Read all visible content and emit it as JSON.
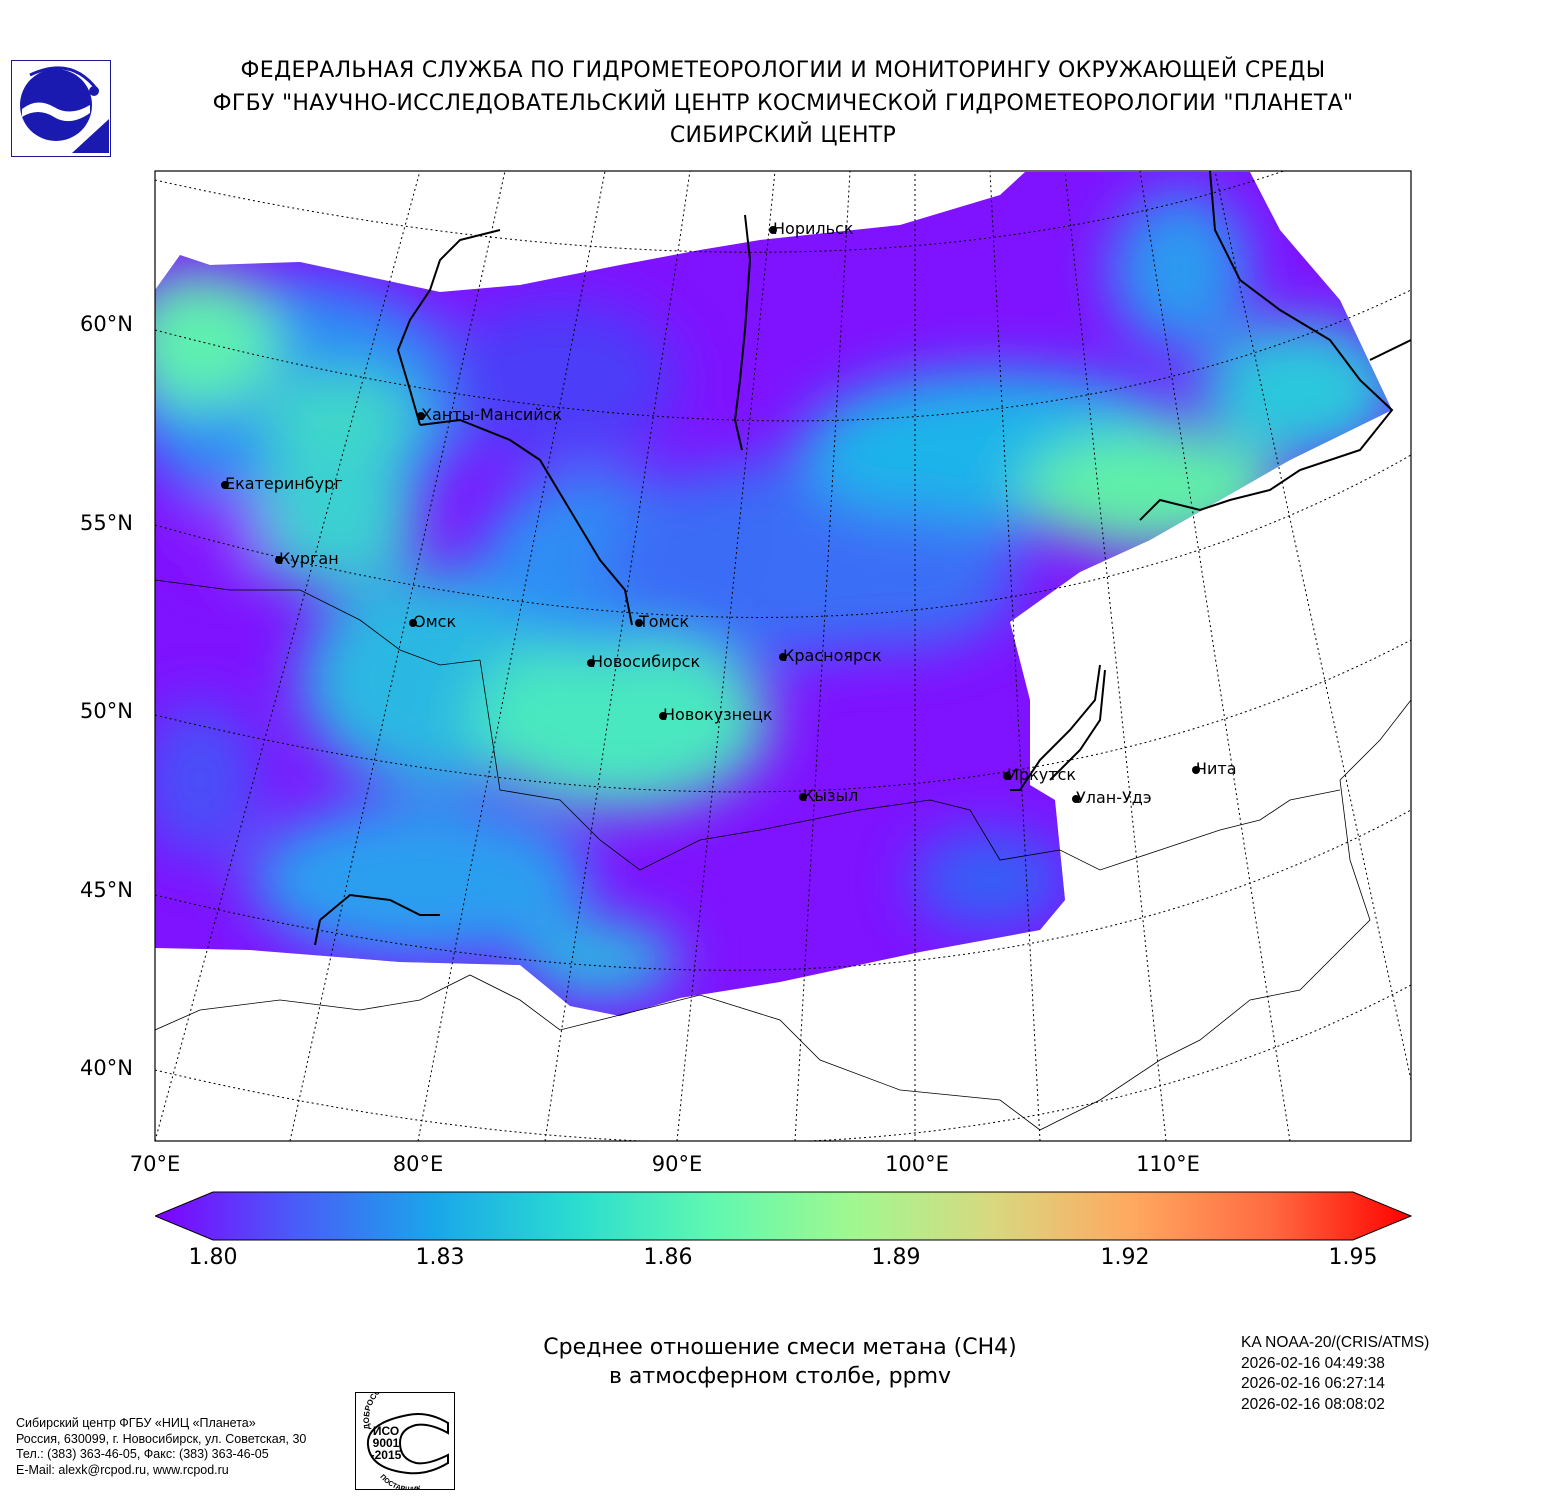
{
  "header": {
    "line1": "ФЕДЕРАЛЬНАЯ СЛУЖБА ПО ГИДРОМЕТЕОРОЛОГИИ И МОНИТОРИНГУ ОКРУЖАЮЩЕЙ СРЕДЫ",
    "line2": "ФГБУ \"НАУЧНО-ИССЛЕДОВАТЕЛЬСКИЙ ЦЕНТР КОСМИЧЕСКОЙ ГИДРОМЕТЕОРОЛОГИИ \"ПЛАНЕТА\"",
    "line3": "СИБИРСКИЙ ЦЕНТР"
  },
  "map": {
    "lat_labels": [
      "60°N",
      "55°N",
      "50°N",
      "45°N",
      "40°N"
    ],
    "lon_labels": [
      "70°E",
      "80°E",
      "90°E",
      "100°E",
      "110°E"
    ],
    "cities": [
      "Норильск",
      "Ханты-Мансийск",
      "Екатеринбург",
      "Курган",
      "Омск",
      "Томск",
      "Новосибирск",
      "Красноярск",
      "Новокузнецк",
      "Кызыл",
      "Иркутск",
      "Улан-Удэ",
      "Чита"
    ]
  },
  "colorbar": {
    "ticks": [
      "1.80",
      "1.83",
      "1.86",
      "1.89",
      "1.92",
      "1.95"
    ],
    "min": 1.8,
    "max": 1.95,
    "colors": [
      "#8000ff",
      "#4a5cf8",
      "#1aa6ea",
      "#2adcd0",
      "#60f8b0",
      "#a0f890",
      "#d8d880",
      "#ffa860",
      "#ff6a40",
      "#ff0000"
    ]
  },
  "product": {
    "title_line1": "Среднее отношение смеси метана (CH4)",
    "title_line2": "в атмосферном столбе, ppmv"
  },
  "satellite": {
    "name": "KA NOAA-20/(CRIS/ATMS)",
    "passes": [
      "2026-02-16 04:49:38",
      "2026-02-16 06:27:14",
      "2026-02-16 08:08:02"
    ]
  },
  "organization": {
    "lines": [
      "Сибирский центр ФГБУ «НИЦ «Планета»",
      "Россия, 630099, г. Новосибирск, ул. Советская, 30",
      "Тел.: (383) 363-46-05, Факс: (383) 363-46-05",
      "E-Mail: alexk@rcpod.ru, www.rcpod.ru"
    ]
  },
  "iso_badge": {
    "top": "ДОБРОСОВЕСТНЫЙ",
    "center": [
      "ИСО",
      "9001",
      "-2015"
    ],
    "bottom": "ПОСТАВЩИК"
  }
}
